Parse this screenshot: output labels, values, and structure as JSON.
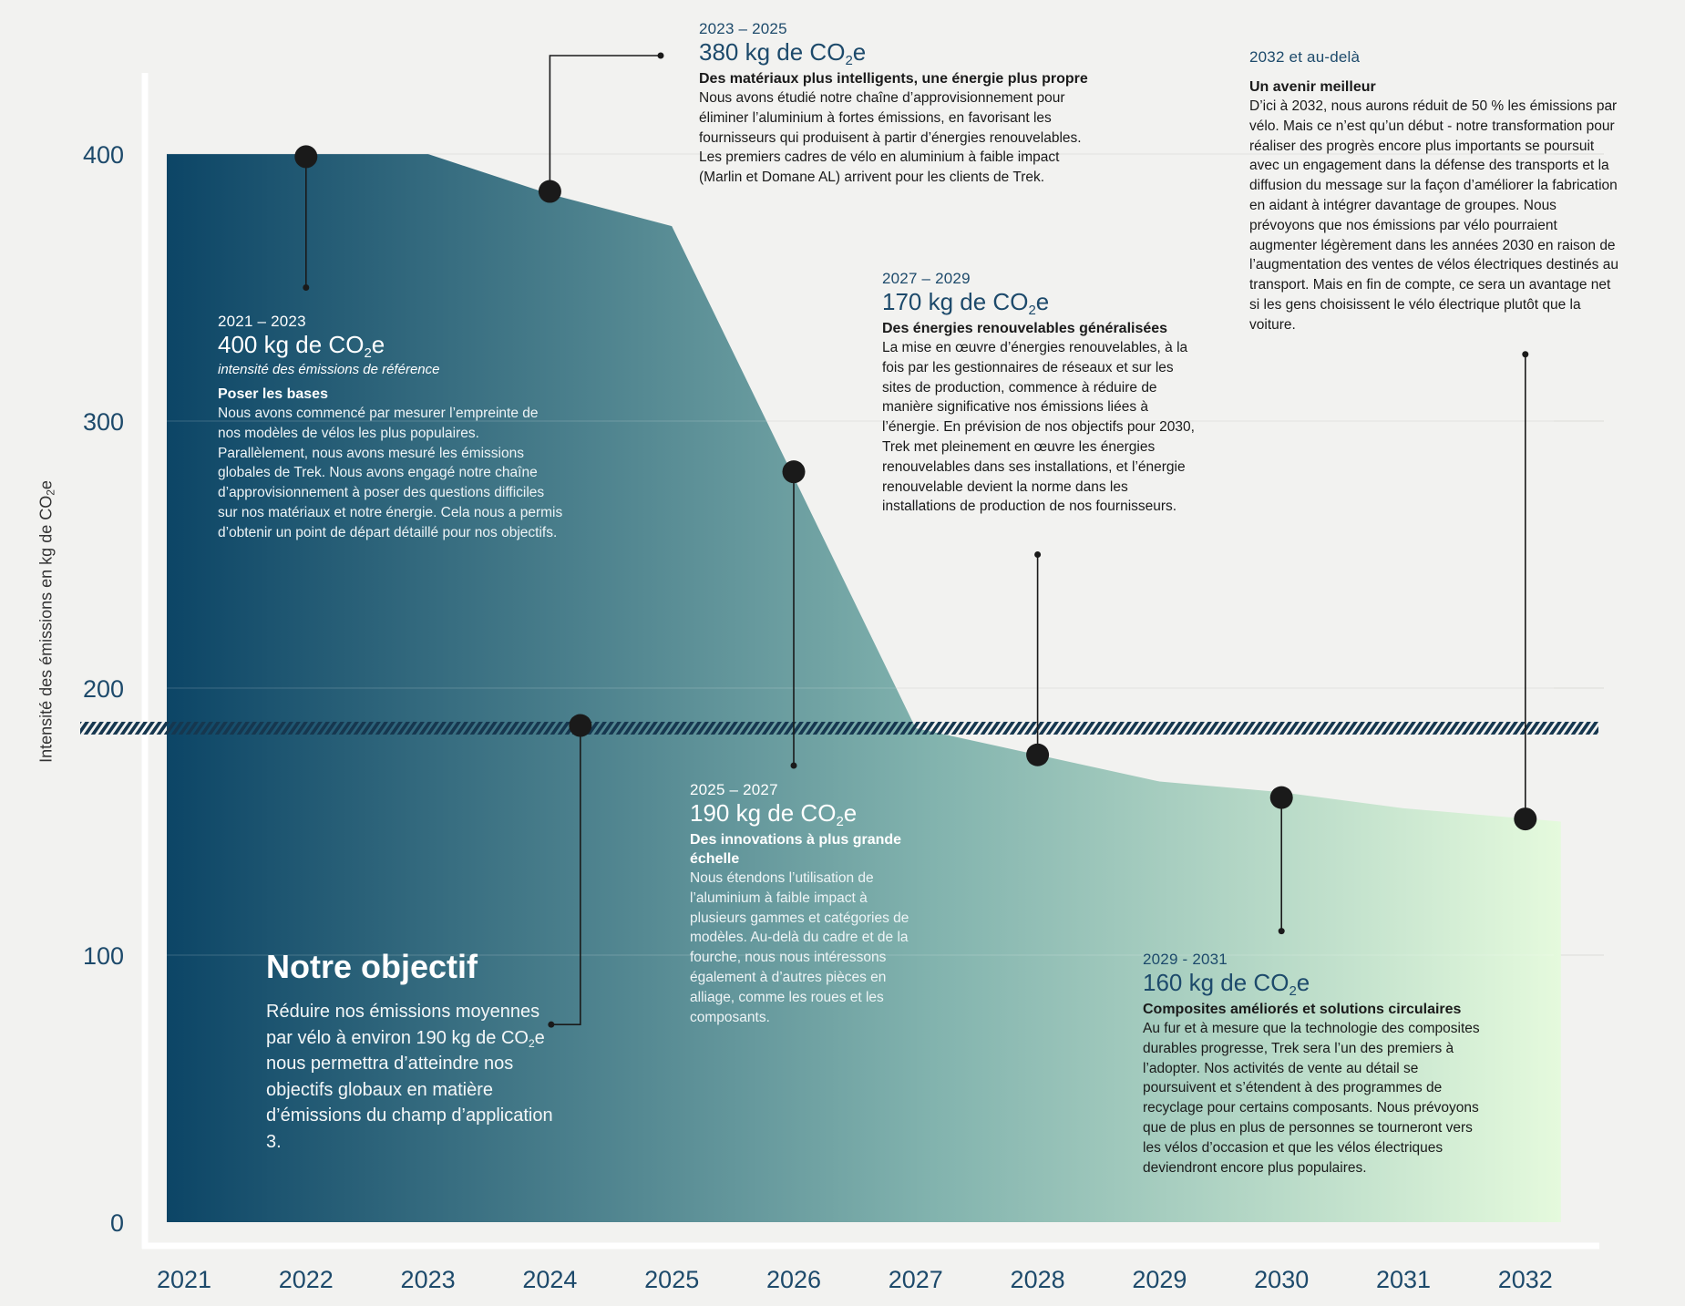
{
  "chart_data": {
    "type": "area",
    "x": [
      2021,
      2022,
      2023,
      2024,
      2025,
      2026,
      2027,
      2028,
      2029,
      2030,
      2031,
      2032
    ],
    "area_points": {
      "x": [
        2021,
        2023,
        2024,
        2025,
        2027,
        2028,
        2029,
        2030,
        2031,
        2032
      ],
      "y": [
        400,
        400,
        385,
        373,
        185,
        175,
        165,
        161,
        155,
        150
      ]
    },
    "target_line": 185,
    "xlim": [
      2020.9,
      2032.3
    ],
    "ylim": [
      0,
      430
    ],
    "yticks": [
      0,
      100,
      200,
      300,
      400
    ],
    "ylabel": "Intensité des émissions en kg de CO2e",
    "grid": true,
    "gradient_colors": [
      "#0c4566",
      "#82b3ae",
      "#e5fadd"
    ],
    "markers": [
      {
        "x": 2022,
        "y": 399,
        "stem_to": 350
      },
      {
        "x": 2024,
        "y": 386,
        "stem_to": 439
      },
      {
        "x": 2026,
        "y": 281,
        "stem_to": 171
      },
      {
        "x": 2024.25,
        "y": 186,
        "stem_to": 74
      },
      {
        "x": 2028,
        "y": 175,
        "stem_to": 250
      },
      {
        "x": 2030,
        "y": 159,
        "stem_to": 109
      },
      {
        "x": 2032,
        "y": 151,
        "stem_to": 325
      }
    ]
  },
  "annotations": [
    {
      "id": "a2021",
      "period": "2021 – 2023",
      "value_main": "400 kg de CO",
      "value_sub": "2",
      "value_suffix": "e",
      "subcaption": "intensité des émissions de référence",
      "heading": "Poser les bases",
      "body": "Nous avons commencé par mesurer l’empreinte de nos modèles de vélos les plus populaires. Parallèlement, nous avons mesuré les émissions globales de Trek. Nous avons engagé notre chaîne d’approvisionnement à poser des questions difficiles sur nos matériaux et notre énergie. Cela nous a permis d’obtenir un point de départ détaillé pour nos objectifs."
    },
    {
      "id": "a2023",
      "period": "2023 – 2025",
      "value_main": "380 kg de CO",
      "value_sub": "2",
      "value_suffix": "e",
      "heading": "Des matériaux plus intelligents, une énergie plus propre",
      "body": "Nous avons étudié notre chaîne d’approvisionnement pour éliminer l’aluminium à fortes émissions, en favorisant les fournisseurs qui produisent à partir d’énergies renouvelables. Les premiers cadres de vélo en aluminium à faible impact (Marlin et Domane AL) arrivent pour les clients de Trek."
    },
    {
      "id": "a2025",
      "period": "2025 – 2027",
      "value_main": "190 kg de CO",
      "value_sub": "2",
      "value_suffix": "e",
      "heading": "Des innovations à plus grande échelle",
      "body": "Nous étendons l’utilisation de l’aluminium à faible impact à plusieurs gammes et catégories de modèles. Au-delà du cadre et de la fourche, nous nous intéressons également à d’autres pièces en alliage, comme les roues et les composants."
    },
    {
      "id": "a2027",
      "period": "2027 – 2029",
      "value_main": "170 kg de CO",
      "value_sub": "2",
      "value_suffix": "e",
      "heading": "Des énergies renouvelables généralisées",
      "body": "La mise en œuvre d’énergies renouvelables, à la fois par les gestionnaires de réseaux et sur les sites de production, commence à réduire de manière significative nos émissions liées à l’énergie. En prévision de nos objectifs pour 2030, Trek met pleinement en œuvre les énergies renouvelables dans ses installations, et l’énergie renouvelable devient la norme dans les installations de production de nos fournisseurs."
    },
    {
      "id": "a2029",
      "period": "2029 - 2031",
      "value_main": "160 kg de CO",
      "value_sub": "2",
      "value_suffix": "e",
      "heading": "Composites améliorés et solutions circulaires",
      "body": "Au fur et à mesure que la technologie des composites durables progresse, Trek sera l’un des premiers à l’adopter. Nos activités de vente au détail se poursuivent et s’étendent à des programmes de recyclage pour certains composants. Nous prévoyons que de plus en plus de personnes se tourneront vers les vélos d’occasion et que les vélos électriques deviendront encore plus populaires."
    },
    {
      "id": "a2032",
      "period": "2032 et au-delà",
      "heading": "Un avenir meilleur",
      "body": "D’ici à 2032, nous aurons réduit de 50 % les émissions par vélo. Mais ce n’est qu’un début - notre transformation pour réaliser des progrès encore plus importants se poursuit avec un engagement dans la défense des transports et la diffusion du message sur la façon d’améliorer la fabrication en aidant à intégrer davantage de groupes. Nous prévoyons que nos émissions par vélo pourraient augmenter légèrement dans les années 2030 en raison de l’augmentation des ventes de vélos électriques destinés au transport. Mais en fin de compte, ce sera un avantage net si les gens choisissent le vélo électrique plutôt que la voiture."
    }
  ],
  "goal": {
    "title": "Notre objectif",
    "body_before": "Réduire nos émissions moyennes par vélo à environ 190 kg de CO",
    "body_sub": "2",
    "body_after": "e nous permettra d’atteindre nos objectifs globaux en matière d’émissions du champ d’application 3."
  },
  "ylabel_parts": {
    "main": "Intensité des émissions en kg de CO",
    "sub": "2",
    "suffix": "e"
  }
}
